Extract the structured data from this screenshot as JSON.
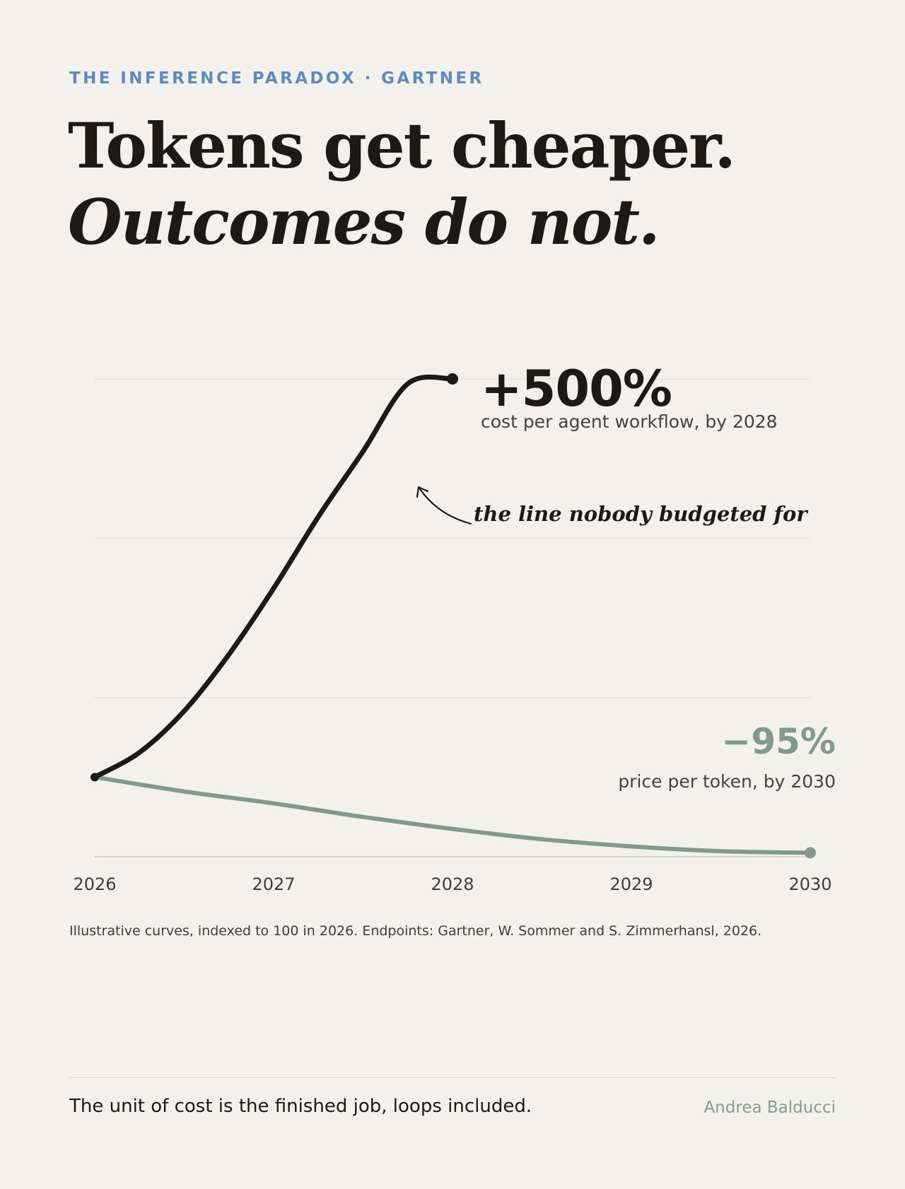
{
  "kicker": "THE INFERENCE PARADOX · GARTNER",
  "headline": {
    "line1": "Tokens get cheaper.",
    "line2": "Outcomes do not."
  },
  "chart_data": {
    "type": "line",
    "x_ticks": [
      "2026",
      "2027",
      "2028",
      "2029",
      "2030"
    ],
    "grid": true,
    "series": [
      {
        "key": "workflow",
        "color": "#1b1a19",
        "points": [
          [
            2026,
            100
          ],
          [
            2026.25,
            131
          ],
          [
            2026.5,
            183
          ],
          [
            2026.75,
            254
          ],
          [
            2027,
            337
          ],
          [
            2027.25,
            427
          ],
          [
            2027.5,
            509
          ],
          [
            2027.75,
            594
          ],
          [
            2028,
            600
          ]
        ],
        "end_label": "+500%",
        "end_sublabel": "cost per agent workflow, by 2028"
      },
      {
        "key": "token",
        "color": "#83998b",
        "points": [
          [
            2026,
            100
          ],
          [
            2026.5,
            82
          ],
          [
            2027,
            67
          ],
          [
            2027.5,
            50
          ],
          [
            2028,
            35
          ],
          [
            2028.5,
            22
          ],
          [
            2029,
            13
          ],
          [
            2029.5,
            7
          ],
          [
            2030,
            5
          ]
        ],
        "end_label": "−95%",
        "end_sublabel": "price per token, by 2030"
      }
    ],
    "annotation": "the line nobody budgeted for"
  },
  "note": "Illustrative curves, indexed to 100 in 2026. Endpoints: Gartner, W. Sommer and S. Zimmerhansl, 2026.",
  "footer": {
    "tagline": "The unit of cost is the finished job, loops included.",
    "author": "Andrea Balducci"
  }
}
